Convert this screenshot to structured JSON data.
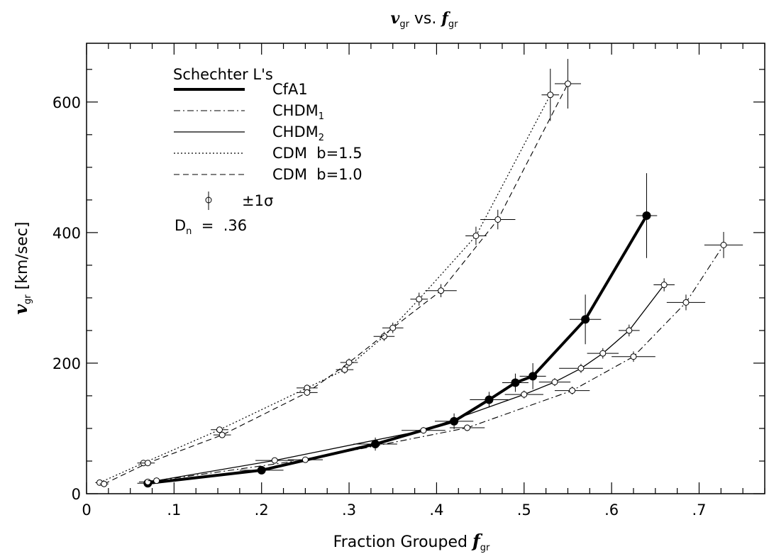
{
  "chart_data": {
    "type": "line",
    "title": {
      "var": "v",
      "var_sub": "gr",
      "mid": " vs. ",
      "var2": "f",
      "var2_sub": "gr"
    },
    "xlabel": {
      "text": "Fraction Grouped ",
      "var": "f",
      "var_sub": "gr"
    },
    "ylabel": {
      "var": "v",
      "var_sub": "gr",
      "text": " [km/sec]"
    },
    "xlim": [
      0,
      0.775
    ],
    "ylim": [
      0,
      690
    ],
    "x_ticks": [
      {
        "v": 0,
        "label": "0"
      },
      {
        "v": 0.1,
        "label": ".1"
      },
      {
        "v": 0.2,
        "label": ".2"
      },
      {
        "v": 0.3,
        "label": ".3"
      },
      {
        "v": 0.4,
        "label": ".4"
      },
      {
        "v": 0.5,
        "label": ".5"
      },
      {
        "v": 0.6,
        "label": ".6"
      },
      {
        "v": 0.7,
        "label": ".7"
      }
    ],
    "y_ticks": [
      {
        "v": 0,
        "label": "0"
      },
      {
        "v": 200,
        "label": "200"
      },
      {
        "v": 400,
        "label": "400"
      },
      {
        "v": 600,
        "label": "600"
      }
    ],
    "x_minor_step": 0.025,
    "y_minor_step": 50,
    "legend": {
      "placement": "top-left",
      "title": "Schechter L's",
      "entries": [
        {
          "series": "CfA1",
          "label": "CfA1",
          "sub": ""
        },
        {
          "series": "CHDM1",
          "label": "CHDM",
          "sub": "1"
        },
        {
          "series": "CHDM2",
          "label": "CHDM",
          "sub": "2"
        },
        {
          "series": "CDM15",
          "label": "CDM  b=1.5",
          "sub": ""
        },
        {
          "series": "CDM10",
          "label": "CDM  b=1.0",
          "sub": ""
        }
      ],
      "errbar_label": "±1σ",
      "annotation": "D",
      "annotation_sub": "n",
      "annotation_rest": "  =  .36"
    },
    "series": [
      {
        "id": "CfA1",
        "style": "thick",
        "marker": "filled",
        "points": [
          {
            "x": 0.07,
            "y": 16,
            "xerr": 0.012,
            "yerr": 4
          },
          {
            "x": 0.2,
            "y": 36,
            "xerr": 0.025,
            "yerr": 6
          },
          {
            "x": 0.33,
            "y": 76,
            "xerr": 0.025,
            "yerr": 10
          },
          {
            "x": 0.42,
            "y": 111,
            "xerr": 0.022,
            "yerr": 12
          },
          {
            "x": 0.46,
            "y": 144,
            "xerr": 0.022,
            "yerr": 12
          },
          {
            "x": 0.49,
            "y": 170,
            "xerr": 0.015,
            "yerr": 14
          },
          {
            "x": 0.51,
            "y": 180,
            "xerr": 0.015,
            "yerr": 20
          },
          {
            "x": 0.57,
            "y": 267,
            "xerr": 0.018,
            "yerr": 38
          },
          {
            "x": 0.64,
            "y": 426,
            "xerr": 0.012,
            "yerr": 65
          }
        ]
      },
      {
        "id": "CHDM1",
        "style": "dashdot",
        "marker": "open",
        "points": [
          {
            "x": 0.07,
            "y": 18,
            "xerr": 0.01,
            "yerr": 3
          },
          {
            "x": 0.25,
            "y": 52,
            "xerr": 0.02,
            "yerr": 4
          },
          {
            "x": 0.435,
            "y": 101,
            "xerr": 0.02,
            "yerr": 5
          },
          {
            "x": 0.555,
            "y": 158,
            "xerr": 0.02,
            "yerr": 6
          },
          {
            "x": 0.625,
            "y": 210,
            "xerr": 0.025,
            "yerr": 8
          },
          {
            "x": 0.685,
            "y": 293,
            "xerr": 0.022,
            "yerr": 12
          },
          {
            "x": 0.728,
            "y": 381,
            "xerr": 0.022,
            "yerr": 20
          }
        ]
      },
      {
        "id": "CHDM2",
        "style": "solid",
        "marker": "open",
        "points": [
          {
            "x": 0.08,
            "y": 20,
            "xerr": 0.01,
            "yerr": 3
          },
          {
            "x": 0.215,
            "y": 51,
            "xerr": 0.022,
            "yerr": 4
          },
          {
            "x": 0.385,
            "y": 97,
            "xerr": 0.025,
            "yerr": 5
          },
          {
            "x": 0.5,
            "y": 152,
            "xerr": 0.022,
            "yerr": 6
          },
          {
            "x": 0.535,
            "y": 171,
            "xerr": 0.018,
            "yerr": 6
          },
          {
            "x": 0.565,
            "y": 192,
            "xerr": 0.025,
            "yerr": 7
          },
          {
            "x": 0.59,
            "y": 215,
            "xerr": 0.018,
            "yerr": 8
          },
          {
            "x": 0.62,
            "y": 250,
            "xerr": 0.012,
            "yerr": 9
          },
          {
            "x": 0.66,
            "y": 320,
            "xerr": 0.012,
            "yerr": 10
          }
        ]
      },
      {
        "id": "CDM15",
        "style": "dotted",
        "marker": "open",
        "points": [
          {
            "x": 0.015,
            "y": 17,
            "xerr": 0.005,
            "yerr": 2
          },
          {
            "x": 0.065,
            "y": 47,
            "xerr": 0.007,
            "yerr": 3
          },
          {
            "x": 0.152,
            "y": 98,
            "xerr": 0.01,
            "yerr": 4
          },
          {
            "x": 0.252,
            "y": 162,
            "xerr": 0.012,
            "yerr": 5
          },
          {
            "x": 0.295,
            "y": 190,
            "xerr": 0.01,
            "yerr": 6
          },
          {
            "x": 0.34,
            "y": 241,
            "xerr": 0.012,
            "yerr": 7
          },
          {
            "x": 0.38,
            "y": 298,
            "xerr": 0.01,
            "yerr": 10
          },
          {
            "x": 0.445,
            "y": 395,
            "xerr": 0.012,
            "yerr": 14
          },
          {
            "x": 0.53,
            "y": 611,
            "xerr": 0.01,
            "yerr": 40
          }
        ]
      },
      {
        "id": "CDM10",
        "style": "dashed",
        "marker": "open",
        "points": [
          {
            "x": 0.02,
            "y": 15,
            "xerr": 0.005,
            "yerr": 2
          },
          {
            "x": 0.07,
            "y": 47,
            "xerr": 0.008,
            "yerr": 3
          },
          {
            "x": 0.155,
            "y": 90,
            "xerr": 0.01,
            "yerr": 4
          },
          {
            "x": 0.252,
            "y": 155,
            "xerr": 0.012,
            "yerr": 5
          },
          {
            "x": 0.3,
            "y": 201,
            "xerr": 0.01,
            "yerr": 6
          },
          {
            "x": 0.35,
            "y": 254,
            "xerr": 0.012,
            "yerr": 8
          },
          {
            "x": 0.405,
            "y": 311,
            "xerr": 0.018,
            "yerr": 10
          },
          {
            "x": 0.47,
            "y": 420,
            "xerr": 0.02,
            "yerr": 15
          },
          {
            "x": 0.55,
            "y": 628,
            "xerr": 0.015,
            "yerr": 38
          }
        ]
      }
    ]
  }
}
